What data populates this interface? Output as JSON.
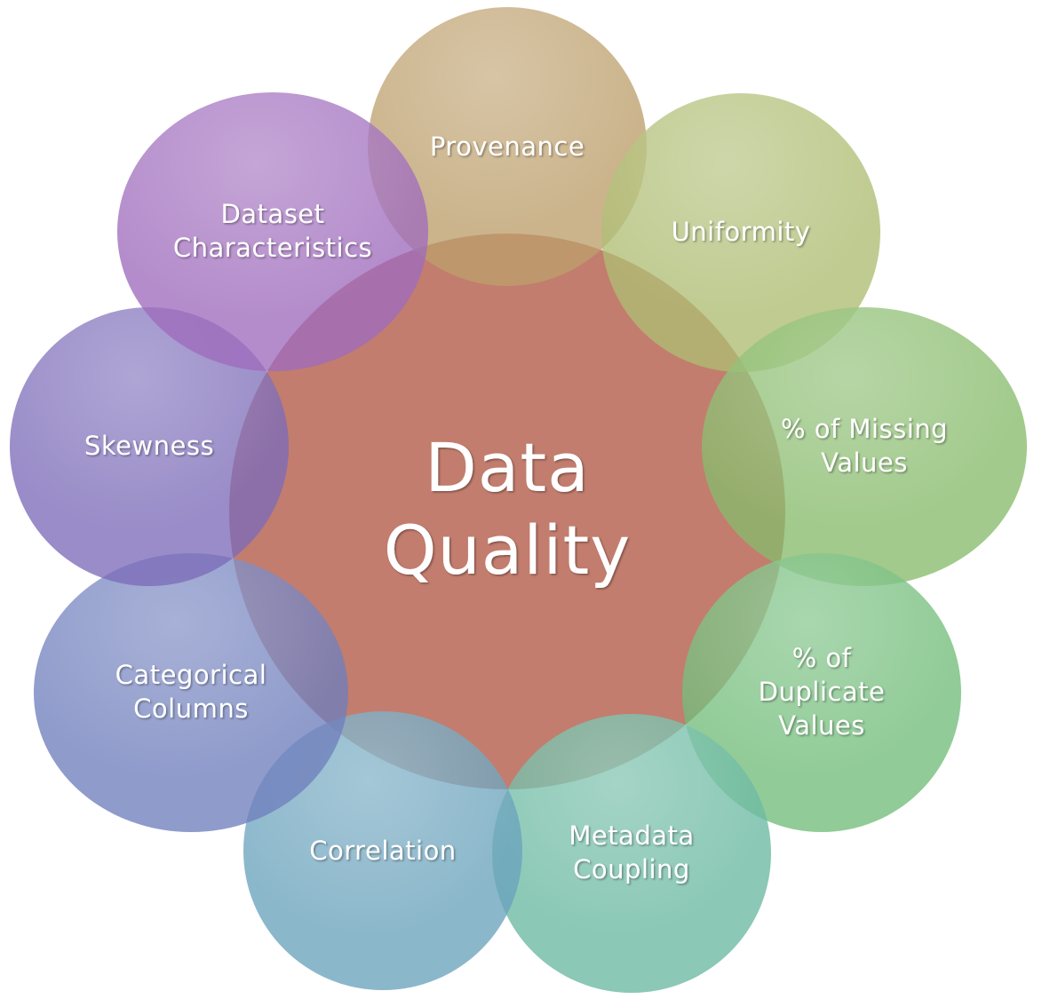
{
  "center": {
    "lines": [
      "Data",
      "Quality"
    ],
    "color": "#c07868"
  },
  "satellites": [
    {
      "id": "provenance",
      "lines": [
        "Provenance"
      ],
      "color": "#bc9f6c"
    },
    {
      "id": "uniformity",
      "lines": [
        "Uniformity"
      ],
      "color": "#aebd72"
    },
    {
      "id": "missing-values",
      "lines": [
        "% of Missing",
        "Values"
      ],
      "color": "#88bb6b"
    },
    {
      "id": "duplicate-values",
      "lines": [
        "% of",
        "Duplicate",
        "Values"
      ],
      "color": "#72bc7a"
    },
    {
      "id": "metadata-coupling",
      "lines": [
        "Metadata",
        "Coupling"
      ],
      "color": "#6ab8a2"
    },
    {
      "id": "correlation",
      "lines": [
        "Correlation"
      ],
      "color": "#6aa3bc"
    },
    {
      "id": "categorical-columns",
      "lines": [
        "Categorical",
        "Columns"
      ],
      "color": "#6f7fbc"
    },
    {
      "id": "skewness",
      "lines": [
        "Skewness"
      ],
      "color": "#7c6cb8"
    },
    {
      "id": "dataset-characteristics",
      "lines": [
        "Dataset",
        "Characteristics"
      ],
      "color": "#9f6cbc"
    }
  ]
}
